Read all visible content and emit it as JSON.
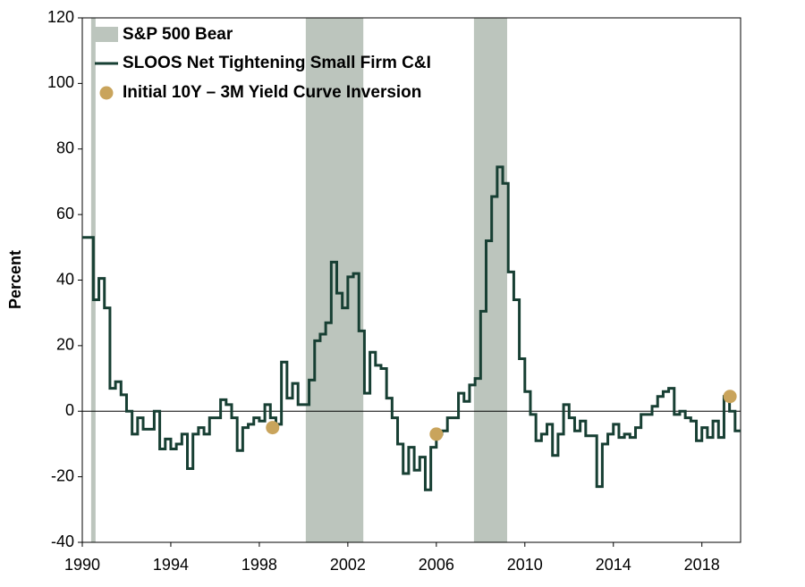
{
  "chart_data": {
    "type": "line",
    "ylabel": "Percent",
    "xlim": [
      1990,
      2019.75
    ],
    "xticks": [
      1990,
      1994,
      1998,
      2002,
      2006,
      2010,
      2014,
      2018
    ],
    "ylim": [
      -40,
      120
    ],
    "yticks": [
      -40,
      -20,
      0,
      20,
      40,
      60,
      80,
      100,
      120
    ],
    "shaded": {
      "name": "S&P 500 Bear",
      "color": "#bcc5bd",
      "periods": [
        [
          1990.4,
          1990.6
        ],
        [
          2000.1,
          2002.7
        ],
        [
          2007.7,
          2009.2
        ]
      ]
    },
    "series": [
      {
        "name": "SLOOS Net Tightening Small Firm C&I",
        "color": "#173f33",
        "step": true,
        "x": [
          1990,
          1990.25,
          1990.5,
          1990.75,
          1991,
          1991.25,
          1991.5,
          1991.75,
          1992,
          1992.25,
          1992.5,
          1992.75,
          1993,
          1993.25,
          1993.5,
          1993.75,
          1994,
          1994.25,
          1994.5,
          1994.75,
          1995,
          1995.25,
          1995.5,
          1995.75,
          1996,
          1996.25,
          1996.5,
          1996.75,
          1997,
          1997.25,
          1997.5,
          1997.75,
          1998,
          1998.25,
          1998.5,
          1998.75,
          1999,
          1999.25,
          1999.5,
          1999.75,
          2000,
          2000.25,
          2000.5,
          2000.75,
          2001,
          2001.25,
          2001.5,
          2001.75,
          2002,
          2002.25,
          2002.5,
          2002.75,
          2003,
          2003.25,
          2003.5,
          2003.75,
          2004,
          2004.25,
          2004.5,
          2004.75,
          2005,
          2005.25,
          2005.5,
          2005.75,
          2006,
          2006.25,
          2006.5,
          2006.75,
          2007,
          2007.25,
          2007.5,
          2007.75,
          2008,
          2008.25,
          2008.5,
          2008.75,
          2009,
          2009.25,
          2009.5,
          2009.75,
          2010,
          2010.25,
          2010.5,
          2010.75,
          2011,
          2011.25,
          2011.5,
          2011.75,
          2012,
          2012.25,
          2012.5,
          2012.75,
          2013,
          2013.25,
          2013.5,
          2013.75,
          2014,
          2014.25,
          2014.5,
          2014.75,
          2015,
          2015.25,
          2015.5,
          2015.75,
          2016,
          2016.25,
          2016.5,
          2016.75,
          2017,
          2017.25,
          2017.5,
          2017.75,
          2018,
          2018.25,
          2018.5,
          2018.75,
          2019,
          2019.25,
          2019.5
        ],
        "values": [
          53,
          53,
          34,
          40.5,
          31.5,
          7,
          9,
          5,
          0,
          -7,
          -2,
          -5.5,
          -5.5,
          0,
          -11.5,
          -8.5,
          -11.5,
          -10,
          -7,
          -17.5,
          -7,
          -5,
          -7,
          -2,
          -2,
          3.5,
          2,
          -2,
          -12,
          -5,
          -4,
          -2,
          -3,
          2,
          -2,
          -4,
          15,
          4,
          8.5,
          2,
          2,
          9.5,
          21.5,
          23.5,
          27,
          45.5,
          36,
          31.5,
          41,
          42,
          24.5,
          5.5,
          18,
          14,
          13,
          4,
          -2,
          -10,
          -19,
          -11,
          -18,
          -14,
          -24,
          -11,
          -7,
          -6,
          -2,
          -2,
          5.5,
          3,
          8,
          10,
          30.5,
          52,
          65.5,
          74.5,
          69.5,
          42.5,
          34,
          16,
          6,
          -1,
          -9,
          -7,
          -4,
          -13.5,
          -7,
          2,
          -2,
          -6,
          -3,
          -7.5,
          -7.5,
          -23,
          -10,
          -7,
          -4,
          -8,
          -7,
          -8,
          -5,
          -1,
          -1,
          1.5,
          4.5,
          6,
          7,
          -1,
          0,
          -2,
          -3,
          -9,
          -5,
          -8,
          -3,
          -8,
          4.5,
          0,
          -6
        ]
      },
      {
        "name": "Initial 10Y – 3M Yield Curve Inversion",
        "color": "#c9a45c",
        "markers": true,
        "x": [
          1998.6,
          2006.0,
          2019.27
        ],
        "values": [
          -5,
          -7,
          4.5
        ]
      }
    ]
  }
}
